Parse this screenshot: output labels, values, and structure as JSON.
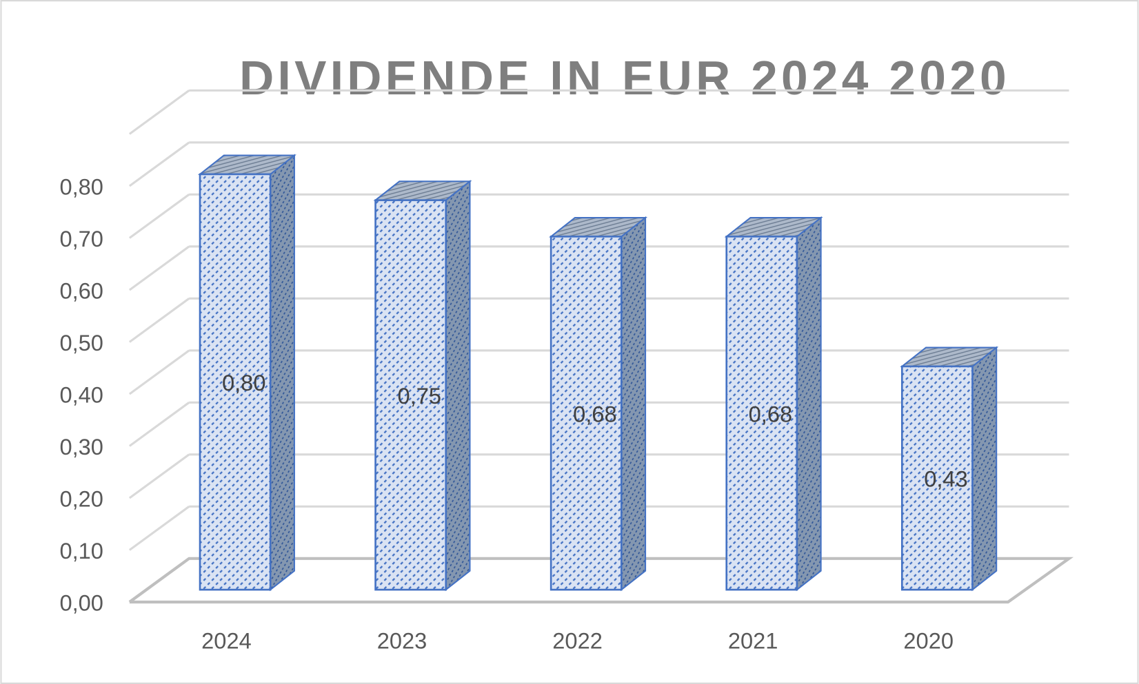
{
  "chart_data": {
    "type": "bar",
    "subtype": "3d-column",
    "title": "DIVIDENDE IN EUR 2024 2020",
    "categories": [
      "2024",
      "2023",
      "2022",
      "2021",
      "2020"
    ],
    "values": [
      0.8,
      0.75,
      0.68,
      0.68,
      0.43
    ],
    "data_labels": [
      "0,80",
      "0,75",
      "0,68",
      "0,68",
      "0,43"
    ],
    "ylim": [
      0,
      0.9
    ],
    "yticks": [
      "0,00",
      "0,10",
      "0,20",
      "0,30",
      "0,40",
      "0,50",
      "0,60",
      "0,70",
      "0,80"
    ],
    "grid": true,
    "legend": "none",
    "colors": {
      "bar_edge": "#4472C4",
      "bar_fill": "#DAE3F3",
      "side": "#8497B0",
      "title": "#7F7F7F",
      "grid": "#D9D9D9",
      "text": "#595959"
    }
  }
}
